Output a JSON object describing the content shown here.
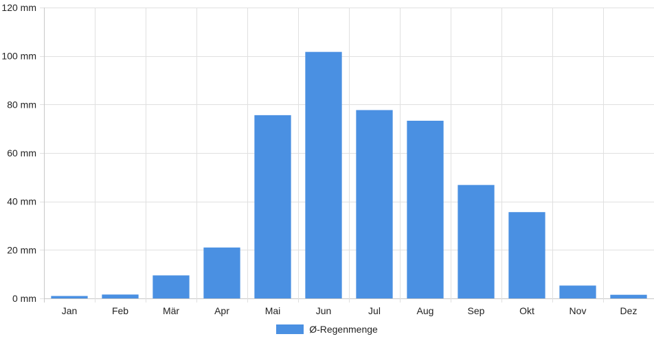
{
  "chart_data": {
    "type": "bar",
    "categories": [
      "Jan",
      "Feb",
      "Mär",
      "Apr",
      "Mai",
      "Jun",
      "Jul",
      "Aug",
      "Sep",
      "Okt",
      "Nov",
      "Dez"
    ],
    "series": [
      {
        "name": "Ø-Regenmenge",
        "values": [
          1,
          1.6,
          9.5,
          21,
          75.6,
          101.7,
          77.7,
          73.3,
          46.8,
          35.6,
          5.3,
          1.5
        ],
        "color": "#4a90e2"
      }
    ],
    "y_ticks": [
      "0 mm",
      "20 mm",
      "40 mm",
      "60 mm",
      "80 mm",
      "100 mm",
      "120 mm"
    ],
    "ylim": [
      0,
      120
    ],
    "y_unit": "mm",
    "grid": true,
    "legend_position": "bottom"
  },
  "colors": {
    "bar": "#4a90e2",
    "grid": "#e0e0e0",
    "axis": "#c8c8c8"
  }
}
